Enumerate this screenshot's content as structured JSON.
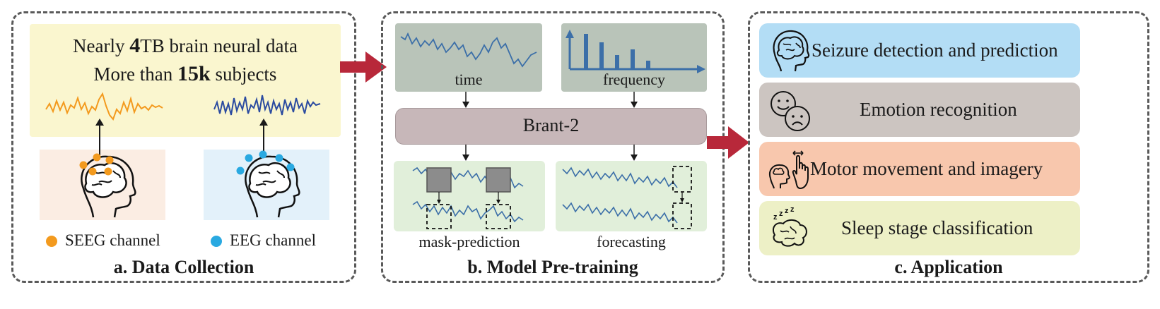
{
  "panel_a": {
    "caption": "a. Data Collection",
    "line1_prefix": "Nearly ",
    "line1_bold": "4",
    "line1_suffix": "TB brain neural data",
    "line2_prefix": "More than ",
    "line2_bold": "15k",
    "line2_suffix": " subjects",
    "legend_seeg": "SEEG channel",
    "legend_eeg": "EEG channel",
    "colors": {
      "seeg": "#F39A1E",
      "eeg": "#29A9E1",
      "top_bg": "#FAF6CF",
      "seeg_bg": "#FBEDE3",
      "eeg_bg": "#E3F1FA"
    }
  },
  "panel_b": {
    "caption": "b. Model Pre-training",
    "time_label": "time",
    "frequency_label": "frequency",
    "model_label": "Brant-2",
    "mask_label": "mask-prediction",
    "forecast_label": "forecasting",
    "colors": {
      "top_boxes": "#B9C4B9",
      "model": "#C7B7B9",
      "bottom_boxes": "#E1EFDA",
      "wave": "#3C6FA8"
    }
  },
  "panel_c": {
    "caption": "c. Application",
    "apps": [
      {
        "label": "Seizure detection and prediction",
        "icon": "brain-head-icon",
        "color": "#B3DDF5"
      },
      {
        "label": "Emotion recognition",
        "icon": "emotion-faces-icon",
        "color": "#CCC5C1"
      },
      {
        "label": "Motor movement and imagery",
        "icon": "motor-hand-icon",
        "color": "#F8C7AD"
      },
      {
        "label": "Sleep stage classification",
        "icon": "sleep-brain-icon",
        "color": "#EDF0C6"
      }
    ]
  },
  "arrow_color": "#B8283A"
}
